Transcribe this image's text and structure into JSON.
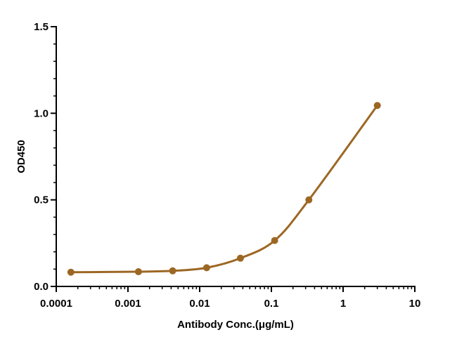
{
  "chart_data": {
    "type": "scatter",
    "title": "",
    "xlabel": "Antibody Conc.(μg/mL)",
    "ylabel": "OD450",
    "x_scale": "log",
    "xlim": [
      0.0001,
      10
    ],
    "ylim": [
      0,
      1.5
    ],
    "x_ticks": [
      "0.0001",
      "0.001",
      "0.01",
      "0.1",
      "1",
      "10"
    ],
    "y_ticks": [
      "0.0",
      "0.5",
      "1.0",
      "1.5"
    ],
    "grid": false,
    "legend": "none",
    "series": [
      {
        "x": [
          0.00016,
          0.0014,
          0.0042,
          0.0125,
          0.037,
          0.111,
          0.333,
          3.0
        ],
        "y": [
          0.082,
          0.085,
          0.09,
          0.108,
          0.163,
          0.265,
          0.5,
          1.045
        ],
        "color": "#9c6723",
        "fit": "four-parameter logistic curve"
      }
    ]
  }
}
